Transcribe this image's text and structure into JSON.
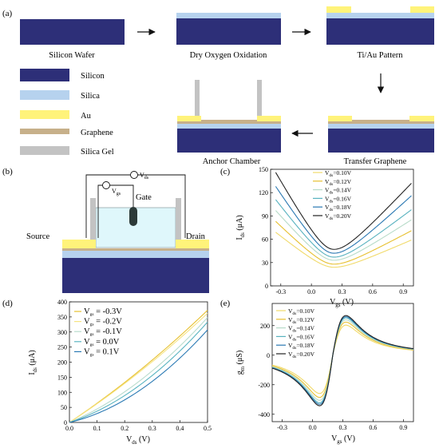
{
  "panels": {
    "a": "(a)",
    "b": "(b)",
    "c": "(c)",
    "d": "(d)",
    "e": "(e)"
  },
  "process": {
    "steps": [
      "Silicon Wafer",
      "Dry Oxygen Oxidation",
      "Ti/Au Pattern",
      "Transfer Graphene",
      "Anchor Chamber"
    ]
  },
  "legend": {
    "items": [
      {
        "label": "Silicon",
        "color": "#2d2f78"
      },
      {
        "label": "Silica",
        "color": "#b6d2ee"
      },
      {
        "label": "Au",
        "color": "#fff37a"
      },
      {
        "label": "Graphene",
        "color": "#c7b08a"
      },
      {
        "label": "Silica Gel",
        "color": "#c3c3c3"
      }
    ]
  },
  "device": {
    "source": "Source",
    "drain": "Drain",
    "gate": "Gate",
    "vds_main": "V",
    "vds_sub": "ds",
    "vgs_main": "V",
    "vgs_sub": "gs"
  },
  "chart_data": [
    {
      "panel": "c",
      "type": "line",
      "xlabel_main": "V",
      "xlabel_sub": "gs",
      "xlabel_unit": " (V)",
      "ylabel_main": "I",
      "ylabel_sub": "ds",
      "ylabel_unit": " (μA)",
      "xlim": [
        -0.4,
        1.0
      ],
      "ylim": [
        0,
        150
      ],
      "xticks": [
        "-0.3",
        "0.0",
        "0.3",
        "0.6",
        "0.9"
      ],
      "xtick_values": [
        -0.3,
        0.0,
        0.3,
        0.6,
        0.9
      ],
      "yticks": [
        "0",
        "30",
        "60",
        "90",
        "120",
        "150"
      ],
      "ytick_values": [
        0,
        30,
        60,
        90,
        120,
        150
      ],
      "model": {
        "v0": 0.22,
        "width": 0.17
      },
      "series": [
        {
          "name_main": "V",
          "name_sub": "ds",
          "name_rest": "=0.10V",
          "color": "#f1da6a",
          "y_left": 69,
          "y_min": 24,
          "y_right": 59
        },
        {
          "name_main": "V",
          "name_sub": "ds",
          "name_rest": "=0.12V",
          "color": "#e7c030",
          "y_left": 83,
          "y_min": 28,
          "y_right": 71
        },
        {
          "name_main": "V",
          "name_sub": "ds",
          "name_rest": "=0.14V",
          "color": "#b7dbc8",
          "y_left": 97,
          "y_min": 33,
          "y_right": 85
        },
        {
          "name_main": "V",
          "name_sub": "ds",
          "name_rest": "=0.16V",
          "color": "#58b2bf",
          "y_left": 111,
          "y_min": 37,
          "y_right": 98
        },
        {
          "name_main": "V",
          "name_sub": "ds",
          "name_rest": "=0.18V",
          "color": "#2a78b2",
          "y_left": 128,
          "y_min": 42,
          "y_right": 116
        },
        {
          "name_main": "V",
          "name_sub": "ds",
          "name_rest": "=0.20V",
          "color": "#222222",
          "y_left": 146,
          "y_min": 47,
          "y_right": 132
        }
      ]
    },
    {
      "panel": "d",
      "type": "line",
      "xlabel_main": "V",
      "xlabel_sub": "ds",
      "xlabel_unit": " (V)",
      "ylabel_main": "I",
      "ylabel_sub": "ds",
      "ylabel_unit": " (μA)",
      "xlim": [
        0,
        0.5
      ],
      "ylim": [
        0,
        400
      ],
      "xticks": [
        "0.0",
        "0.1",
        "0.2",
        "0.3",
        "0.4",
        "0.5"
      ],
      "xtick_values": [
        0.0,
        0.1,
        0.2,
        0.3,
        0.4,
        0.5
      ],
      "yticks": [
        "0",
        "50",
        "100",
        "150",
        "200",
        "250",
        "300",
        "350",
        "400"
      ],
      "ytick_values": [
        0,
        50,
        100,
        150,
        200,
        250,
        300,
        350,
        400
      ],
      "series": [
        {
          "name_main": "V",
          "name_sub": "gs",
          "name_rest": " = -0.3V",
          "color": "#e7c030",
          "y_end": 372,
          "linear_frac": 0.82
        },
        {
          "name_main": "V",
          "name_sub": "gs",
          "name_rest": " = -0.2V",
          "color": "#f6e482",
          "y_end": 362,
          "linear_frac": 0.82
        },
        {
          "name_main": "V",
          "name_sub": "gs",
          "name_rest": " = -0.1V",
          "color": "#b9dccd",
          "y_end": 348,
          "linear_frac": 0.55
        },
        {
          "name_main": "V",
          "name_sub": "gs",
          "name_rest": " = 0.0V",
          "color": "#5ab4c1",
          "y_end": 333,
          "linear_frac": 0.45
        },
        {
          "name_main": "V",
          "name_sub": "gs",
          "name_rest": " = 0.1V",
          "color": "#2b7ab4",
          "y_end": 307,
          "linear_frac": 0.35
        }
      ]
    },
    {
      "panel": "e",
      "type": "line",
      "xlabel_main": "V",
      "xlabel_sub": "gs",
      "xlabel_unit": " (V)",
      "ylabel_main": "g",
      "ylabel_sub": "m",
      "ylabel_unit": " (μS)",
      "xlim": [
        -0.4,
        1.0
      ],
      "ylim": [
        -450,
        350
      ],
      "xticks": [
        "-0.3",
        "0.0",
        "0.3",
        "0.6",
        "0.9"
      ],
      "xtick_values": [
        -0.3,
        0.0,
        0.3,
        0.6,
        0.9
      ],
      "yticks": [
        "-400",
        "-200",
        "0",
        "200"
      ],
      "ytick_values": [
        -400,
        -200,
        0,
        200
      ],
      "model": {
        "v0": 0.22,
        "width": 0.17,
        "dv": 0.02
      },
      "series": [
        {
          "name_main": "V",
          "name_sub": "ds",
          "name_rest": "=0.10V",
          "color": "#f1da6a",
          "amp": 0.78
        },
        {
          "name_main": "V",
          "name_sub": "ds",
          "name_rest": "=0.12V",
          "color": "#e7c030",
          "amp": 0.86
        },
        {
          "name_main": "V",
          "name_sub": "ds",
          "name_rest": "=0.14V",
          "color": "#b7dbc8",
          "amp": 0.92
        },
        {
          "name_main": "V",
          "name_sub": "ds",
          "name_rest": "=0.16V",
          "color": "#58b2bf",
          "amp": 0.97
        },
        {
          "name_main": "V",
          "name_sub": "ds",
          "name_rest": "=0.18V",
          "color": "#2a78b2",
          "amp": 1.0
        },
        {
          "name_main": "V",
          "name_sub": "ds",
          "name_rest": "=0.20V",
          "color": "#222222",
          "amp": 1.03
        }
      ]
    }
  ]
}
